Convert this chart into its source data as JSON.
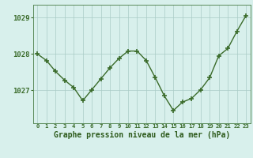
{
  "hours": [
    0,
    1,
    2,
    3,
    4,
    5,
    6,
    7,
    8,
    9,
    10,
    11,
    12,
    13,
    14,
    15,
    16,
    17,
    18,
    19,
    20,
    21,
    22,
    23
  ],
  "pressure": [
    1028.0,
    1027.82,
    1027.52,
    1027.28,
    1027.08,
    1026.72,
    1027.02,
    1027.32,
    1027.62,
    1027.88,
    1028.08,
    1028.08,
    1027.82,
    1027.35,
    1026.85,
    1026.45,
    1026.68,
    1026.78,
    1027.02,
    1027.35,
    1027.95,
    1028.15,
    1028.62,
    1029.05
  ],
  "line_color": "#3a6b2a",
  "marker_color": "#3a6b2a",
  "bg_color": "#d8f0ec",
  "grid_color": "#aaccc6",
  "xlabel": "Graphe pression niveau de la mer (hPa)",
  "xlabel_color": "#2d5a1b",
  "ytick_values": [
    1027,
    1028,
    1029
  ],
  "ylim": [
    1026.1,
    1029.35
  ],
  "xlim": [
    -0.5,
    23.5
  ],
  "tick_color": "#3a6b2a",
  "spine_color": "#5a8a5a",
  "marker_size": 4.5,
  "line_width": 1.0
}
